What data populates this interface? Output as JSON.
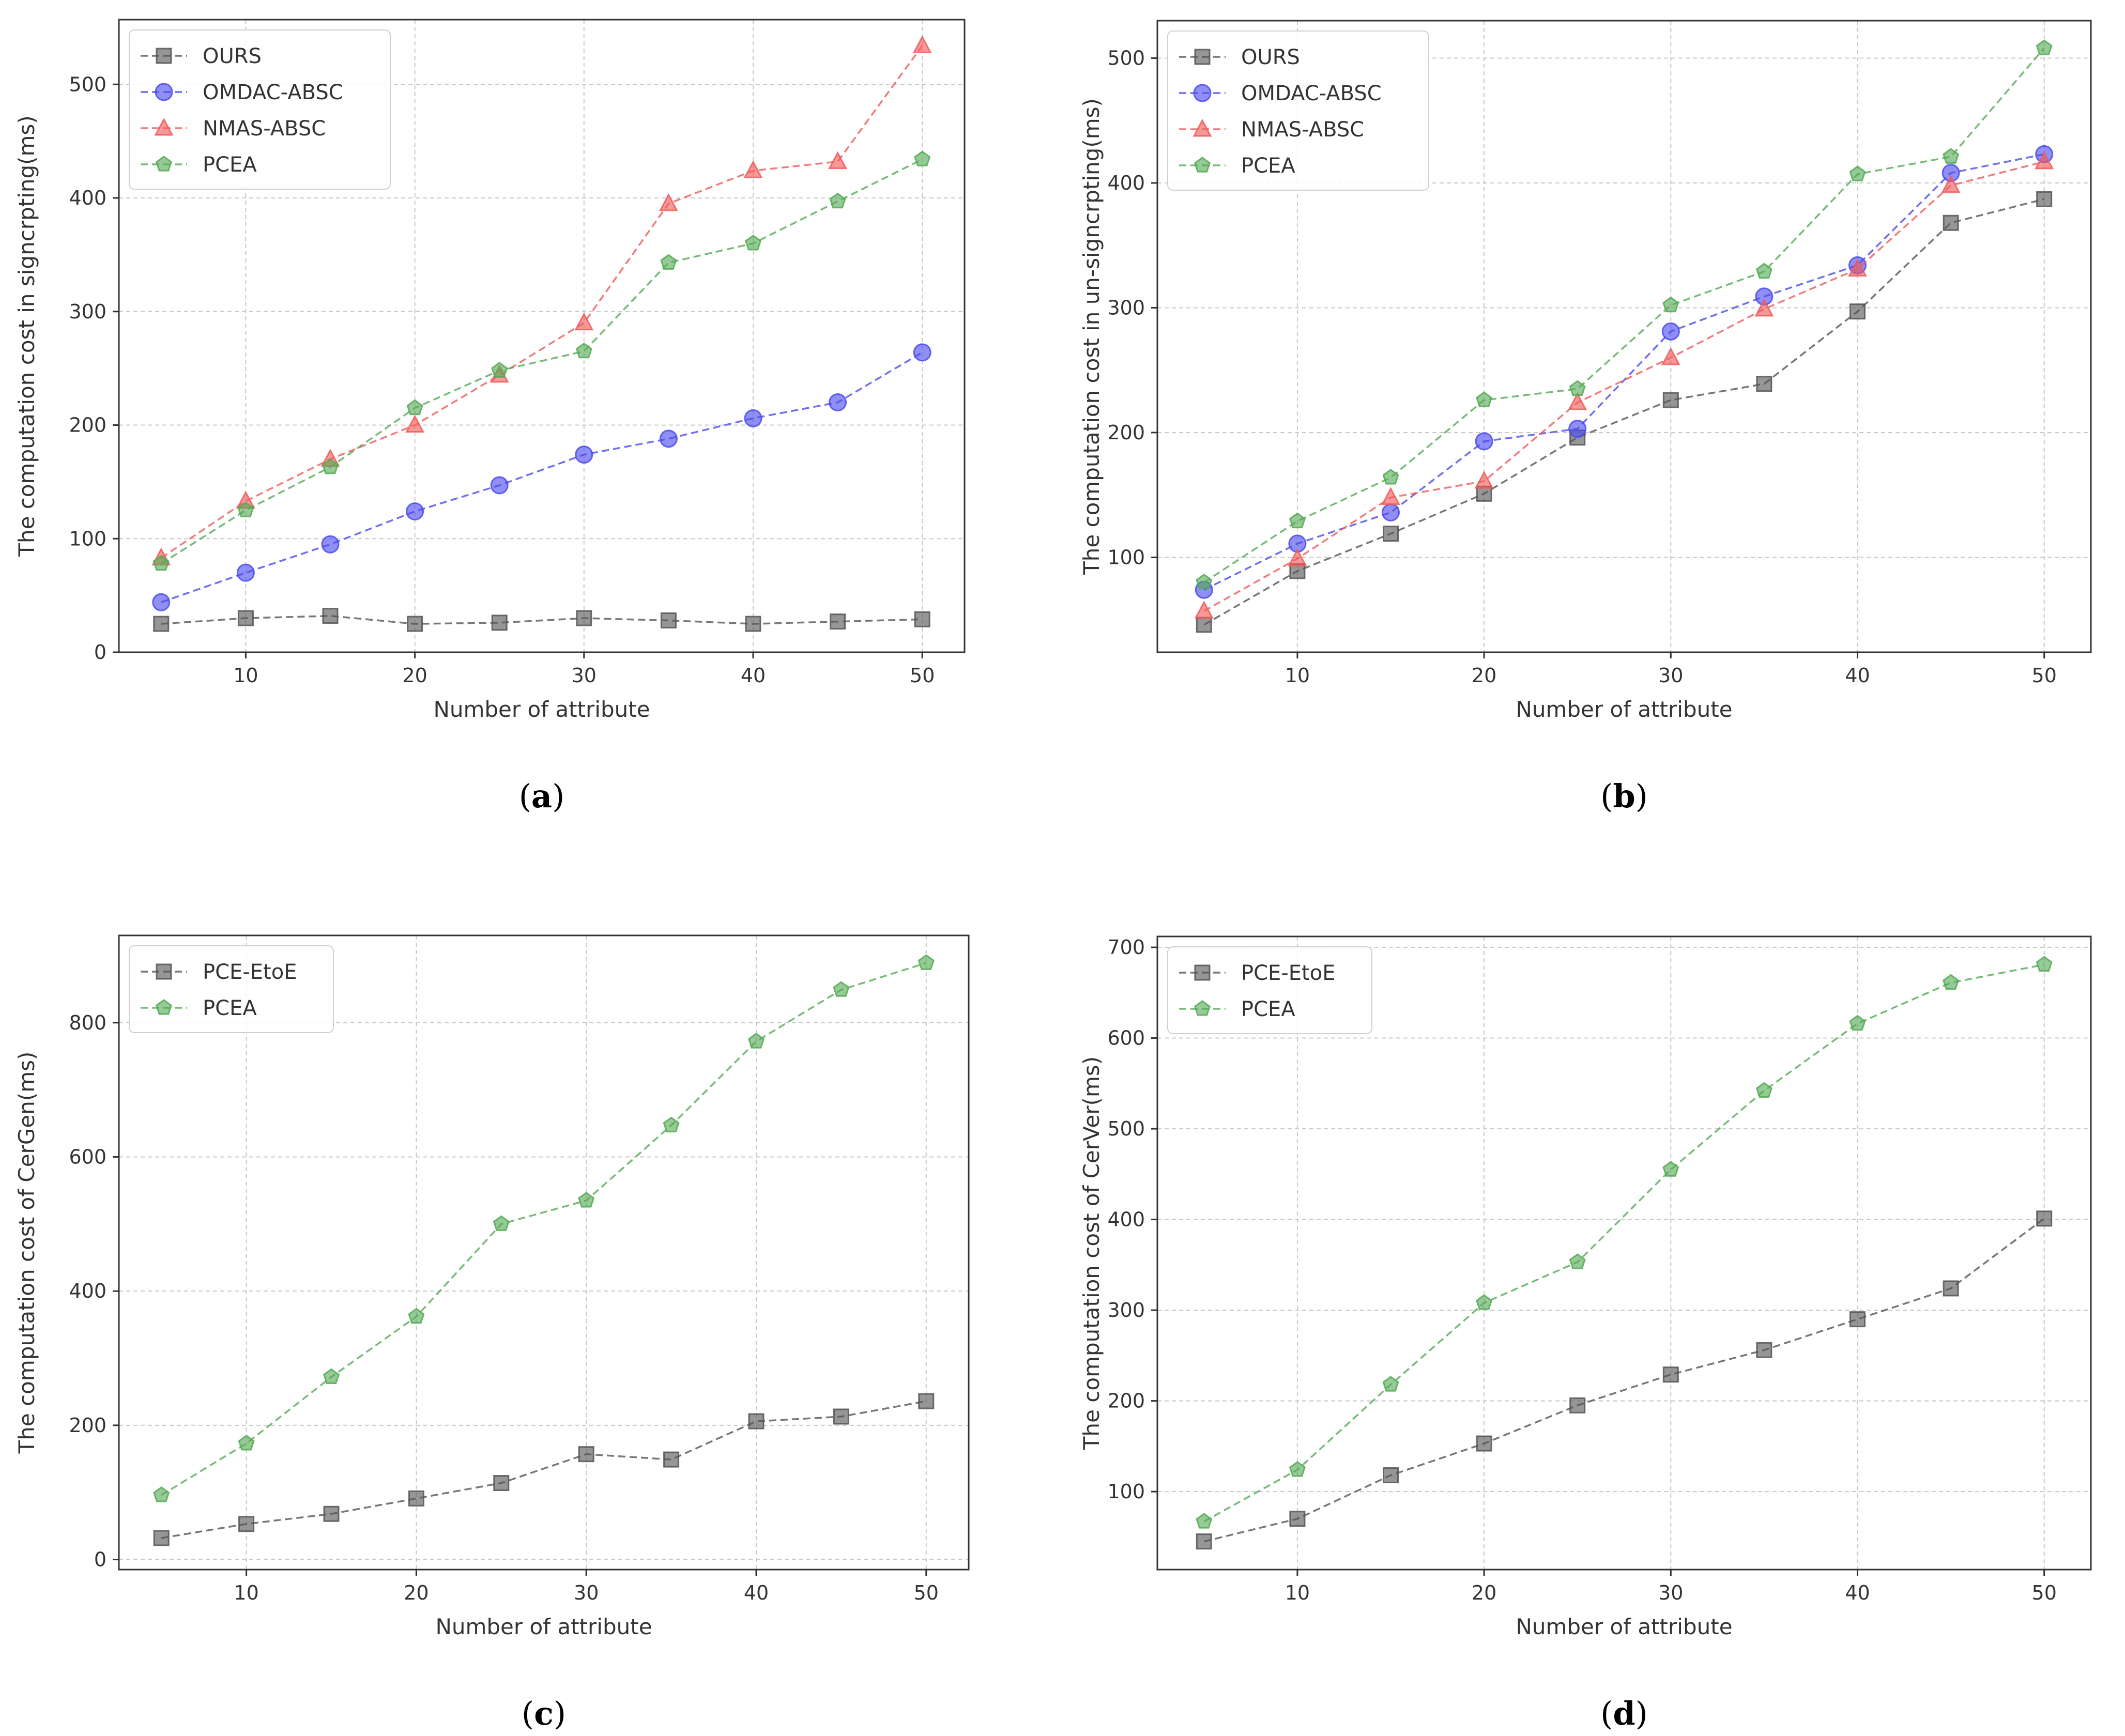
{
  "chart_data": [
    {
      "type": "line",
      "panel_label": "a",
      "title": "",
      "xlabel": "Number of attribute",
      "ylabel": "The computation cost in signcrpting(ms)",
      "x": [
        5,
        10,
        15,
        20,
        25,
        30,
        35,
        40,
        45,
        50
      ],
      "xticks": [
        10,
        20,
        30,
        40,
        50
      ],
      "xlim": [
        2.5,
        52.5
      ],
      "yticks": [
        0,
        100,
        200,
        300,
        400,
        500
      ],
      "ylim": [
        0,
        557
      ],
      "legend_position": "top-left",
      "series": [
        {
          "name": "OURS",
          "color": "#555555",
          "marker": "square",
          "values": [
            25,
            30,
            32,
            25,
            26,
            30,
            28,
            25,
            27,
            29
          ]
        },
        {
          "name": "OMDAC-ABSC",
          "color": "#4b4bf0",
          "marker": "circle",
          "values": [
            44,
            70,
            95,
            124,
            147,
            174,
            188,
            206,
            220,
            264
          ]
        },
        {
          "name": "NMAS-ABSC",
          "color": "#f05a5a",
          "marker": "triangle",
          "values": [
            83,
            133,
            170,
            200,
            244,
            290,
            395,
            424,
            432,
            534
          ]
        },
        {
          "name": "PCEA",
          "color": "#55aa55",
          "marker": "pentagon",
          "values": [
            78,
            125,
            163,
            215,
            248,
            265,
            343,
            360,
            397,
            434
          ]
        }
      ]
    },
    {
      "type": "line",
      "panel_label": "b",
      "title": "",
      "xlabel": "Number of attribute",
      "ylabel": "The computation cost in un-signcrpting(ms)",
      "x": [
        5,
        10,
        15,
        20,
        25,
        30,
        35,
        40,
        45,
        50
      ],
      "xticks": [
        10,
        20,
        30,
        40,
        50
      ],
      "xlim": [
        2.5,
        52.5
      ],
      "yticks": [
        100,
        200,
        300,
        400,
        500
      ],
      "ylim": [
        24,
        530
      ],
      "legend_position": "top-left",
      "series": [
        {
          "name": "OURS",
          "color": "#555555",
          "marker": "square",
          "values": [
            46,
            89,
            119,
            151,
            196,
            226,
            239,
            297,
            368,
            387
          ]
        },
        {
          "name": "OMDAC-ABSC",
          "color": "#4b4bf0",
          "marker": "circle",
          "values": [
            74,
            111,
            136,
            193,
            203,
            281,
            309,
            334,
            408,
            423
          ]
        },
        {
          "name": "NMAS-ABSC",
          "color": "#f05a5a",
          "marker": "triangle",
          "values": [
            57,
            99,
            148,
            161,
            224,
            260,
            299,
            331,
            398,
            417
          ]
        },
        {
          "name": "PCEA",
          "color": "#55aa55",
          "marker": "pentagon",
          "values": [
            80,
            129,
            164,
            226,
            235,
            302,
            329,
            407,
            421,
            508
          ]
        }
      ]
    },
    {
      "type": "line",
      "panel_label": "c",
      "title": "",
      "xlabel": "Number of attribute",
      "ylabel": "The computation cost of CerGen(ms)",
      "x": [
        5,
        10,
        15,
        20,
        25,
        30,
        35,
        40,
        45,
        50
      ],
      "xticks": [
        10,
        20,
        30,
        40,
        50
      ],
      "xlim": [
        2.5,
        52.5
      ],
      "yticks": [
        0,
        200,
        400,
        600,
        800
      ],
      "ylim": [
        -15,
        930
      ],
      "legend_position": "top-left",
      "series": [
        {
          "name": "PCE-EtoE",
          "color": "#555555",
          "marker": "square",
          "values": [
            32,
            53,
            68,
            91,
            114,
            157,
            149,
            206,
            213,
            236
          ]
        },
        {
          "name": "PCEA",
          "color": "#55aa55",
          "marker": "pentagon",
          "values": [
            96,
            173,
            272,
            362,
            500,
            535,
            647,
            772,
            849,
            889
          ]
        }
      ]
    },
    {
      "type": "line",
      "panel_label": "d",
      "title": "",
      "xlabel": "Number of attribute",
      "ylabel": "The computation cost of CerVer(ms)",
      "x": [
        5,
        10,
        15,
        20,
        25,
        30,
        35,
        40,
        45,
        50
      ],
      "xticks": [
        10,
        20,
        30,
        40,
        50
      ],
      "xlim": [
        2.5,
        52.5
      ],
      "yticks": [
        100,
        200,
        300,
        400,
        500,
        600,
        700
      ],
      "ylim": [
        14,
        712
      ],
      "legend_position": "top-left",
      "series": [
        {
          "name": "PCE-EtoE",
          "color": "#555555",
          "marker": "square",
          "values": [
            45,
            70,
            118,
            153,
            195,
            229,
            256,
            290,
            324,
            401
          ]
        },
        {
          "name": "PCEA",
          "color": "#55aa55",
          "marker": "pentagon",
          "values": [
            67,
            124,
            218,
            308,
            353,
            455,
            542,
            616,
            661,
            681
          ]
        }
      ]
    }
  ]
}
